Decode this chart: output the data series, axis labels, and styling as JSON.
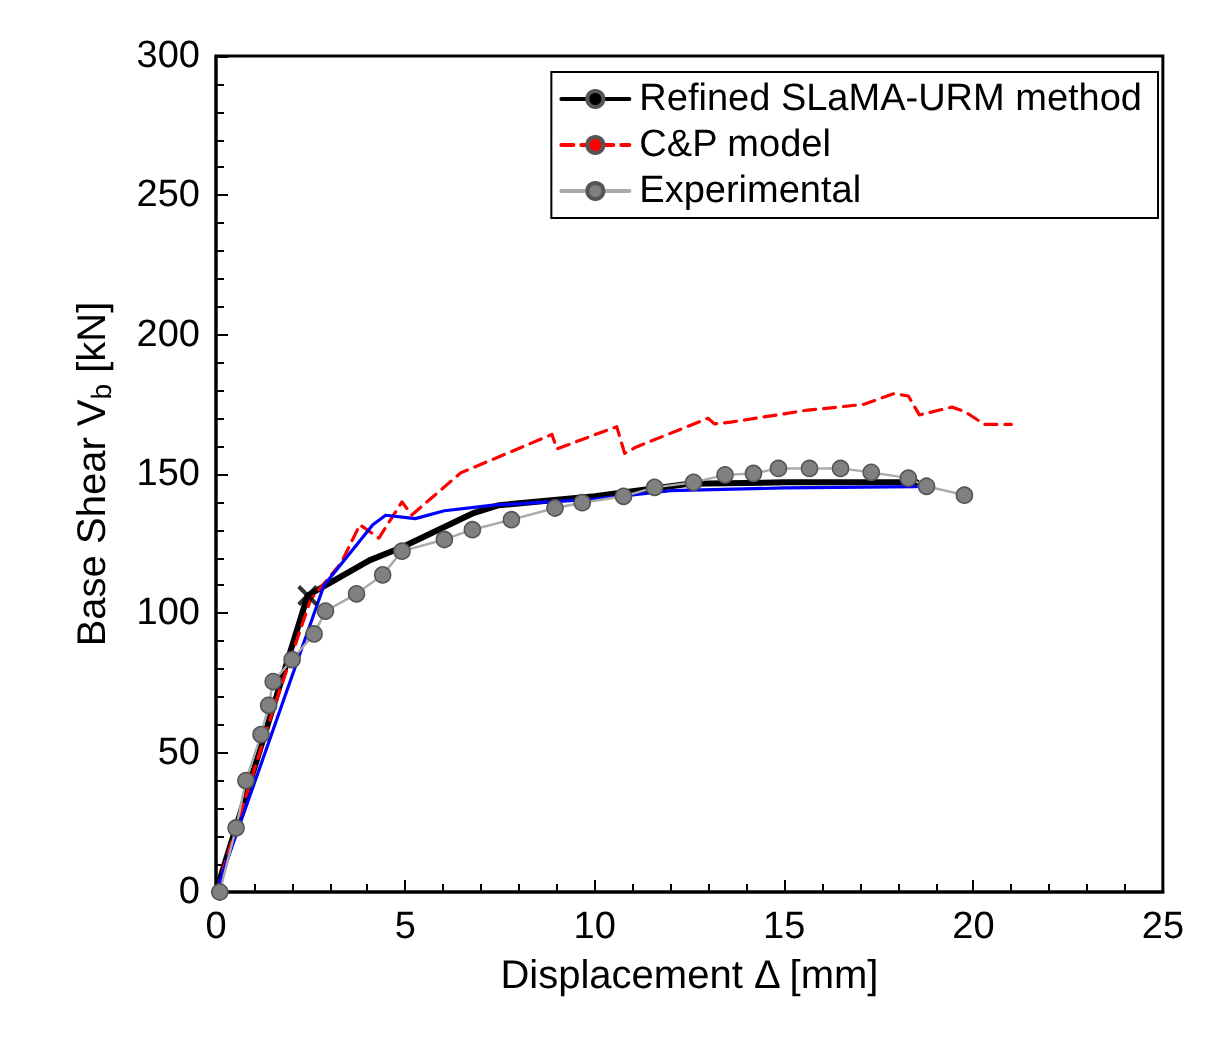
{
  "chart_data": {
    "type": "line",
    "xlabel": "Displacement Δ [mm]",
    "ylabel": "Base Shear V$_{b}$ [kN]",
    "xlim": [
      0,
      25
    ],
    "xticks": [
      0,
      5,
      10,
      15,
      20,
      25
    ],
    "ylim": [
      0,
      300
    ],
    "yticks": [
      0,
      50,
      100,
      150,
      200,
      250,
      300
    ],
    "grid": false,
    "legend": "top right",
    "marker": "none",
    "line_style": "solid",
    "series": [
      {
        "name": "Refined SLaMA-URM method",
        "color": "#000000",
        "x": [
          0,
          2.42,
          3.02,
          4.05,
          4.91,
          6.8,
          7.47,
          10,
          12.5,
          15,
          18.5
        ],
        "values": [
          0,
          106.4,
          111,
          119,
          123.7,
          136,
          138.8,
          142,
          146.5,
          147,
          147
        ]
      },
      {
        "name": "C&P model",
        "color": "#ff0000",
        "line_style": "dashed",
        "x": [
          0,
          1.5,
          2.5,
          3.3,
          3.8,
          4.3,
          4.91,
          5.17,
          6.46,
          8.87,
          9.0,
          10.58,
          10.79,
          11.1,
          12.99,
          13.16,
          13.59,
          15.56,
          17.11,
          17.89,
          18.28,
          18.57,
          19.43,
          19.77,
          20.29,
          21.0
        ],
        "values": [
          0,
          65,
          105,
          118,
          131.8,
          127,
          140,
          135.3,
          150.4,
          164.2,
          159,
          167,
          157.4,
          159.7,
          170,
          168,
          168.6,
          172.8,
          175,
          178.8,
          178,
          171.2,
          174,
          172.4,
          167.8,
          167.8
        ]
      },
      {
        "color": "#0000ff",
        "x": [
          0,
          2.85,
          4.14,
          4.48,
          5.26,
          6.03,
          7.32,
          10,
          12,
          15,
          18.5
        ],
        "values": [
          0,
          110,
          131.8,
          135.2,
          134,
          136.8,
          138.8,
          141,
          144,
          145,
          145.5
        ]
      },
      {
        "name": "Experimental",
        "color": "#808080",
        "marker": "circle",
        "x": [
          0.1,
          0.53,
          0.79,
          1.19,
          1.39,
          1.51,
          2.01,
          2.59,
          2.89,
          3.71,
          4.4,
          4.91,
          6.03,
          6.77,
          7.8,
          8.95,
          9.67,
          10.76,
          11.58,
          12.61,
          13.44,
          14.19,
          14.85,
          15.67,
          16.49,
          17.3,
          18.28,
          18.76,
          19.76
        ],
        "values": [
          0,
          23,
          40,
          56.5,
          67,
          75.5,
          83.4,
          92.6,
          100.8,
          107,
          113.8,
          122.3,
          126.5,
          130,
          133.6,
          137.8,
          139.7,
          142,
          145.2,
          147,
          149.7,
          150.2,
          152,
          152,
          152,
          150.6,
          148.5,
          145.6,
          142.4
        ]
      },
      {
        "type": "scatter",
        "color": "#000000",
        "marker": "cross",
        "x": [
          2.42
        ],
        "values": [
          106.4
        ]
      }
    ]
  }
}
